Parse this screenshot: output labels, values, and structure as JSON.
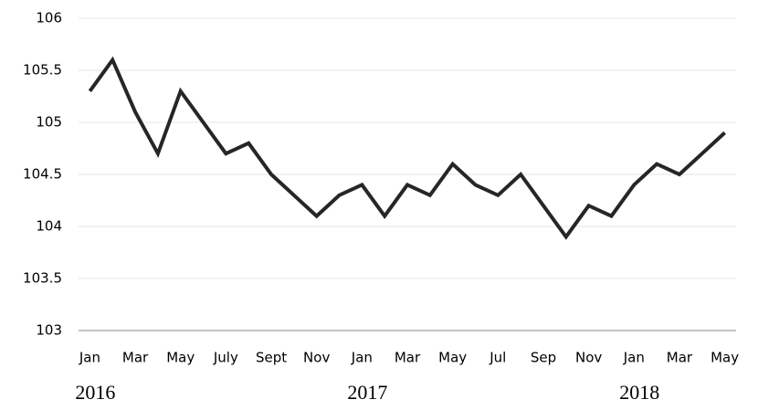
{
  "chart_data": {
    "type": "line",
    "categories": [
      "Jan",
      null,
      "Mar",
      null,
      "May",
      null,
      "July",
      null,
      "Sept",
      null,
      "Nov",
      null,
      "Jan",
      null,
      "Mar",
      null,
      "May",
      null,
      "Jul",
      null,
      "Sep",
      null,
      "Nov",
      null,
      "Jan",
      null,
      "Mar",
      null,
      "May"
    ],
    "category_groups": [
      "2016",
      null,
      null,
      null,
      null,
      null,
      null,
      null,
      null,
      null,
      null,
      null,
      "2017",
      null,
      null,
      null,
      null,
      null,
      null,
      null,
      null,
      null,
      null,
      null,
      "2018",
      null,
      null,
      null,
      null
    ],
    "values": [
      105.3,
      105.6,
      105.1,
      104.7,
      105.3,
      105.0,
      104.7,
      104.8,
      104.5,
      104.3,
      104.1,
      104.3,
      104.4,
      104.1,
      104.4,
      104.3,
      104.6,
      104.4,
      104.3,
      104.5,
      104.2,
      103.9,
      104.2,
      104.1,
      104.4,
      104.6,
      104.5,
      104.7,
      104.9
    ],
    "color": "#262626",
    "ylim": [
      103,
      106
    ],
    "yticks": [
      103,
      103.5,
      104,
      104.5,
      105,
      105.5,
      106
    ],
    "grid": true
  }
}
